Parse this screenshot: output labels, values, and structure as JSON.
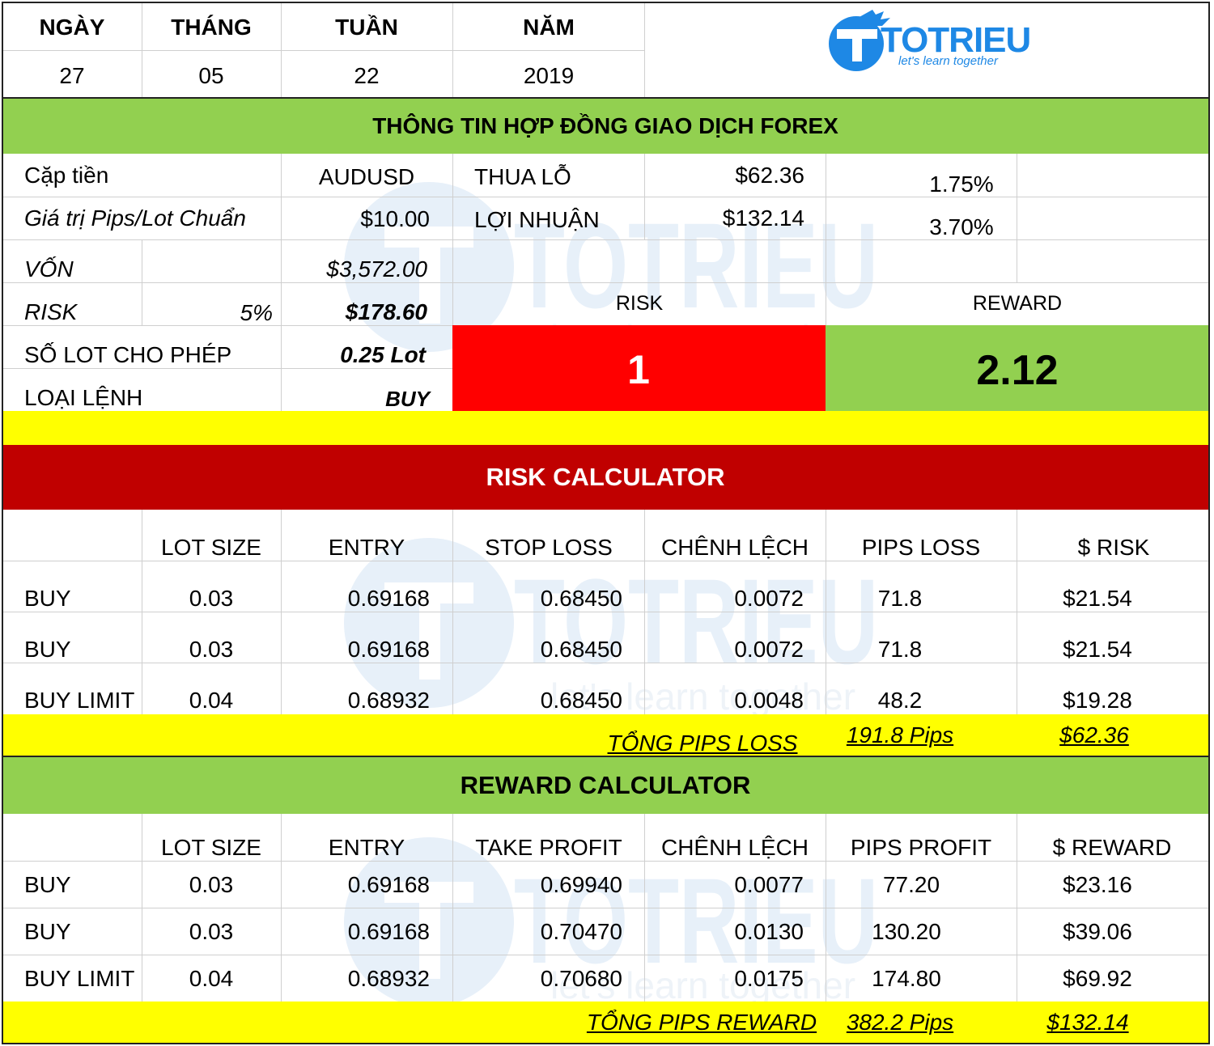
{
  "date": {
    "headers": [
      "NGÀY",
      "THÁNG",
      "TUẦN",
      "NĂM"
    ],
    "values": [
      "27",
      "05",
      "22",
      "2019"
    ]
  },
  "logo": {
    "name": "TOTRIEU",
    "tagline": "let's learn together"
  },
  "colors": {
    "green": "#92d050",
    "red": "#ff0000",
    "dark_red": "#c00000",
    "yellow": "#ffff00",
    "watermark": "#e4eef8",
    "logo_blue": "#1e88e5"
  },
  "contract": {
    "title": "THÔNG TIN HỢP ĐỒNG GIAO DỊCH FOREX",
    "pair_label": "Cặp tiền",
    "pair_value": "AUDUSD",
    "pip_value_label": "Giá trị Pips/Lot Chuẩn",
    "pip_value": "$10.00",
    "loss_label": "THUA LỖ",
    "loss_value": "$62.36",
    "loss_pct": "1.75%",
    "profit_label": "LỢI NHUẬN",
    "profit_value": "$132.14",
    "profit_pct": "3.70%",
    "capital_label": "VỐN",
    "capital_value": "$3,572.00",
    "risk_label": "RISK",
    "risk_pct": "5%",
    "risk_value": "$178.60",
    "lot_label": "SỐ LOT CHO PHÉP",
    "lot_value": "0.25 Lot",
    "order_label": "LOẠI LỆNH",
    "order_value": "BUY",
    "rr_risk_label": "RISK",
    "rr_reward_label": "REWARD",
    "rr_risk_value": "1",
    "rr_reward_value": "2.12"
  },
  "risk_calc": {
    "title": "RISK CALCULATOR",
    "headers": [
      "LOT SIZE",
      "ENTRY",
      "STOP LOSS",
      "CHÊNH LỆCH",
      "PIPS LOSS",
      "$ RISK"
    ],
    "rows": [
      {
        "type": "BUY",
        "lot": "0.03",
        "entry": "0.69168",
        "stop": "0.68450",
        "diff": "0.0072",
        "pips": "71.8",
        "amount": "$21.54"
      },
      {
        "type": "BUY",
        "lot": "0.03",
        "entry": "0.69168",
        "stop": "0.68450",
        "diff": "0.0072",
        "pips": "71.8",
        "amount": "$21.54"
      },
      {
        "type": "BUY LIMIT",
        "lot": "0.04",
        "entry": "0.68932",
        "stop": "0.68450",
        "diff": "0.0048",
        "pips": "48.2",
        "amount": "$19.28"
      }
    ],
    "total_label": "TỔNG PIPS LOSS",
    "total_pips": "191.8 Pips",
    "total_amount": "$62.36"
  },
  "reward_calc": {
    "title": "REWARD CALCULATOR",
    "headers": [
      "LOT SIZE",
      "ENTRY",
      "TAKE PROFIT",
      "CHÊNH LỆCH",
      "PIPS PROFIT",
      "$ REWARD"
    ],
    "rows": [
      {
        "type": "BUY",
        "lot": "0.03",
        "entry": "0.69168",
        "tp": "0.69940",
        "diff": "0.0077",
        "pips": "77.20",
        "amount": "$23.16"
      },
      {
        "type": "BUY",
        "lot": "0.03",
        "entry": "0.69168",
        "tp": "0.70470",
        "diff": "0.0130",
        "pips": "130.20",
        "amount": "$39.06"
      },
      {
        "type": "BUY LIMIT",
        "lot": "0.04",
        "entry": "0.68932",
        "tp": "0.70680",
        "diff": "0.0175",
        "pips": "174.80",
        "amount": "$69.92"
      }
    ],
    "total_label": "TỔNG PIPS REWARD",
    "total_pips": "382.2 Pips",
    "total_amount": "$132.14"
  }
}
